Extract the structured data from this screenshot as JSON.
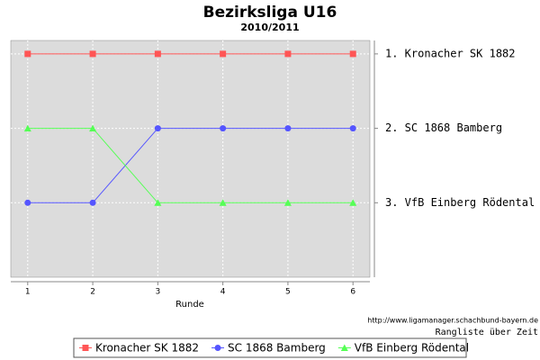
{
  "chart_data": {
    "type": "line",
    "title": "Bezirksliga U16",
    "subtitle": "2010/2011",
    "x_label": "Runde",
    "source": "http://www.ligamanager.schachbund-bayern.de",
    "caption": "Rangliste über Zeit",
    "x": [
      1,
      2,
      3,
      4,
      5,
      6
    ],
    "xlim": [
      0.74,
      6.26
    ],
    "xticks": [
      1,
      2,
      3,
      4,
      5,
      6
    ],
    "ylim": [
      0.82,
      4.0
    ],
    "y_inverted": true,
    "yticks": [
      {
        "value": 1,
        "label": "1. Kronacher SK 1882"
      },
      {
        "value": 2,
        "label": "2. SC 1868 Bamberg"
      },
      {
        "value": 3,
        "label": "3. VfB Einberg Rödental"
      }
    ],
    "grid": true,
    "series": [
      {
        "name": "Kronacher SK 1882",
        "color": "#ff5555",
        "marker": "square",
        "values": [
          1,
          1,
          1,
          1,
          1,
          1
        ]
      },
      {
        "name": "SC 1868 Bamberg",
        "color": "#5555ff",
        "marker": "circle",
        "values": [
          3,
          3,
          2,
          2,
          2,
          2
        ]
      },
      {
        "name": "VfB Einberg Rödental",
        "color": "#55ff55",
        "marker": "triangle",
        "values": [
          2,
          2,
          3,
          3,
          3,
          3
        ]
      }
    ]
  }
}
